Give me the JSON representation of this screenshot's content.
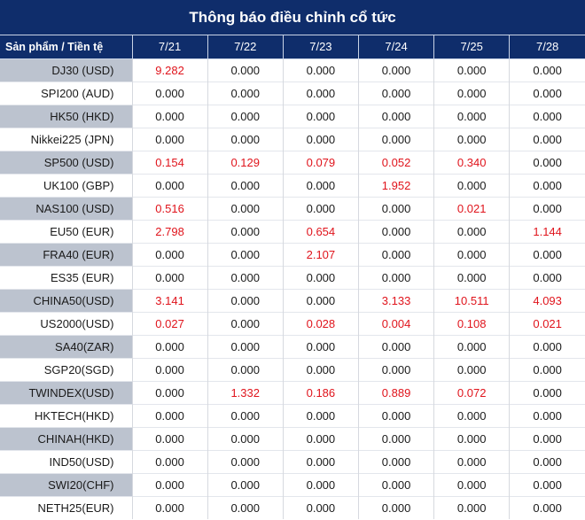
{
  "title": "Thông báo điều chỉnh cổ tức",
  "header": {
    "product_label": "Sản phẩm / Tiền tệ",
    "dates": [
      "7/21",
      "7/22",
      "7/23",
      "7/24",
      "7/25",
      "7/28"
    ]
  },
  "colors": {
    "header_bg": "#0f2d6b",
    "nonzero_text": "#e0141c",
    "alt_row_product_bg": "#bcc3cf"
  },
  "rows": [
    {
      "product": "DJ30 (USD)",
      "values": [
        "9.282",
        "0.000",
        "0.000",
        "0.000",
        "0.000",
        "0.000"
      ]
    },
    {
      "product": "SPI200 (AUD)",
      "values": [
        "0.000",
        "0.000",
        "0.000",
        "0.000",
        "0.000",
        "0.000"
      ]
    },
    {
      "product": "HK50 (HKD)",
      "values": [
        "0.000",
        "0.000",
        "0.000",
        "0.000",
        "0.000",
        "0.000"
      ]
    },
    {
      "product": "Nikkei225 (JPN)",
      "values": [
        "0.000",
        "0.000",
        "0.000",
        "0.000",
        "0.000",
        "0.000"
      ]
    },
    {
      "product": "SP500 (USD)",
      "values": [
        "0.154",
        "0.129",
        "0.079",
        "0.052",
        "0.340",
        "0.000"
      ]
    },
    {
      "product": "UK100 (GBP)",
      "values": [
        "0.000",
        "0.000",
        "0.000",
        "1.952",
        "0.000",
        "0.000"
      ]
    },
    {
      "product": "NAS100 (USD)",
      "values": [
        "0.516",
        "0.000",
        "0.000",
        "0.000",
        "0.021",
        "0.000"
      ]
    },
    {
      "product": "EU50 (EUR)",
      "values": [
        "2.798",
        "0.000",
        "0.654",
        "0.000",
        "0.000",
        "1.144"
      ]
    },
    {
      "product": "FRA40 (EUR)",
      "values": [
        "0.000",
        "0.000",
        "2.107",
        "0.000",
        "0.000",
        "0.000"
      ]
    },
    {
      "product": "ES35 (EUR)",
      "values": [
        "0.000",
        "0.000",
        "0.000",
        "0.000",
        "0.000",
        "0.000"
      ]
    },
    {
      "product": "CHINA50(USD)",
      "values": [
        "3.141",
        "0.000",
        "0.000",
        "3.133",
        "10.511",
        "4.093"
      ]
    },
    {
      "product": "US2000(USD)",
      "values": [
        "0.027",
        "0.000",
        "0.028",
        "0.004",
        "0.108",
        "0.021"
      ]
    },
    {
      "product": "SA40(ZAR)",
      "values": [
        "0.000",
        "0.000",
        "0.000",
        "0.000",
        "0.000",
        "0.000"
      ]
    },
    {
      "product": "SGP20(SGD)",
      "values": [
        "0.000",
        "0.000",
        "0.000",
        "0.000",
        "0.000",
        "0.000"
      ]
    },
    {
      "product": "TWINDEX(USD)",
      "values": [
        "0.000",
        "1.332",
        "0.186",
        "0.889",
        "0.072",
        "0.000"
      ]
    },
    {
      "product": "HKTECH(HKD)",
      "values": [
        "0.000",
        "0.000",
        "0.000",
        "0.000",
        "0.000",
        "0.000"
      ]
    },
    {
      "product": "CHINAH(HKD)",
      "values": [
        "0.000",
        "0.000",
        "0.000",
        "0.000",
        "0.000",
        "0.000"
      ]
    },
    {
      "product": "IND50(USD)",
      "values": [
        "0.000",
        "0.000",
        "0.000",
        "0.000",
        "0.000",
        "0.000"
      ]
    },
    {
      "product": "SWI20(CHF)",
      "values": [
        "0.000",
        "0.000",
        "0.000",
        "0.000",
        "0.000",
        "0.000"
      ]
    },
    {
      "product": "NETH25(EUR)",
      "values": [
        "0.000",
        "0.000",
        "0.000",
        "0.000",
        "0.000",
        "0.000"
      ]
    }
  ]
}
